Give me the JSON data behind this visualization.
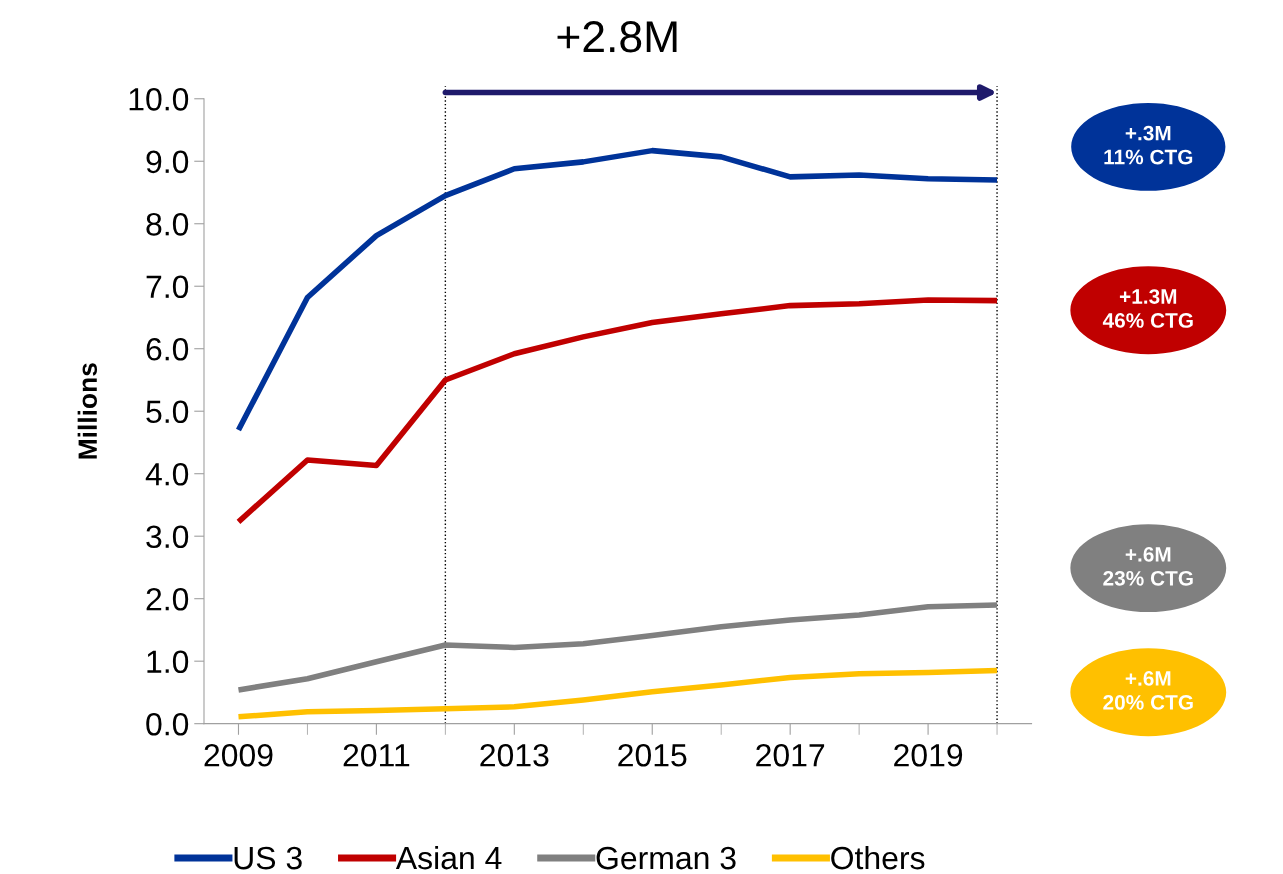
{
  "chart_data": {
    "type": "line",
    "ylabel": "Millions",
    "x": [
      2009,
      2010,
      2011,
      2012,
      2013,
      2014,
      2015,
      2016,
      2017,
      2018,
      2019,
      2020
    ],
    "series": [
      {
        "name": "US 3",
        "color": "#003399",
        "values": [
          4.7,
          6.82,
          7.81,
          8.45,
          8.88,
          8.99,
          9.17,
          9.07,
          8.75,
          8.78,
          8.72,
          8.7
        ]
      },
      {
        "name": "Asian 4",
        "color": "#c00000",
        "values": [
          3.23,
          4.22,
          4.13,
          5.5,
          5.92,
          6.19,
          6.42,
          6.56,
          6.69,
          6.72,
          6.78,
          6.77
        ]
      },
      {
        "name": "German 3",
        "color": "#808080",
        "values": [
          0.54,
          0.72,
          0.99,
          1.26,
          1.22,
          1.28,
          1.41,
          1.55,
          1.66,
          1.74,
          1.87,
          1.9
        ]
      },
      {
        "name": "Others",
        "color": "#ffc000",
        "values": [
          0.11,
          0.19,
          0.21,
          0.24,
          0.27,
          0.38,
          0.51,
          0.62,
          0.74,
          0.8,
          0.82,
          0.85
        ]
      }
    ],
    "xlim": [
      2008.5,
      2020.5
    ],
    "xticks": [
      2009,
      {
        "value": 2010,
        "label": null
      },
      2011,
      {
        "value": 2012,
        "label": null
      },
      2013,
      {
        "value": 2014,
        "label": null
      },
      2015,
      {
        "value": 2016,
        "label": null
      },
      2017,
      {
        "value": 2018,
        "label": null
      },
      2019,
      {
        "value": 2020,
        "label": null
      }
    ],
    "ylim": [
      0,
      10
    ],
    "yticks": [
      {
        "value": 0,
        "label": "0.0"
      },
      {
        "value": 1,
        "label": "1.0"
      },
      {
        "value": 2,
        "label": "2.0"
      },
      {
        "value": 3,
        "label": "3.0"
      },
      {
        "value": 4,
        "label": "4.0"
      },
      {
        "value": 5,
        "label": "5.0"
      },
      {
        "value": 6,
        "label": "6.0"
      },
      {
        "value": 7,
        "label": "7.0"
      },
      {
        "value": 8,
        "label": "8.0"
      },
      {
        "value": 9,
        "label": "9.0"
      },
      {
        "value": 10,
        "label": "10.0"
      }
    ],
    "ref_lines": [
      {
        "axis": "x",
        "value": 2012,
        "color": "#000000",
        "line_style": "dotted"
      },
      {
        "axis": "x",
        "value": 2020,
        "color": "#000000",
        "line_style": "dotted"
      }
    ],
    "annotations": [
      "+2.8M",
      "+.3M\n11% CTG",
      "+1.3M\n46% CTG",
      "+.6M\n23% CTG",
      "+.6M\n20% CTG"
    ],
    "grid": false,
    "legend": "bottom",
    "marker": "none",
    "line_style": "solid"
  }
}
